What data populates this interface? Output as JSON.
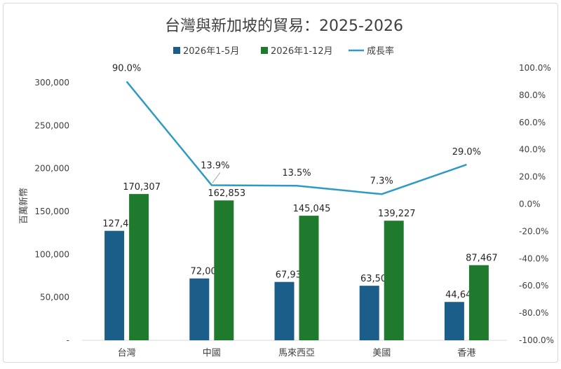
{
  "chart_data": {
    "type": "bar",
    "title": "台灣與新加坡的貿易：2025-2026",
    "ylabel": "百萬新幣",
    "categories": [
      "台灣",
      "中國",
      "馬來西亞",
      "美國",
      "香港"
    ],
    "series": [
      {
        "name": "2026年1-5月",
        "kind": "bar",
        "axis": "left",
        "color": "#1b5e8a",
        "values": [
          127443,
          72001,
          67935,
          63501,
          44645
        ],
        "labels": [
          "127,443",
          "72,001",
          "67,935",
          "63,501",
          "44,645"
        ]
      },
      {
        "name": "2026年1-12月",
        "kind": "bar",
        "axis": "left",
        "color": "#1f7a2e",
        "values": [
          170307,
          162853,
          145045,
          139227,
          87467
        ],
        "labels": [
          "170,307",
          "162,853",
          "145,045",
          "139,227",
          "87,467"
        ]
      },
      {
        "name": "成長率",
        "kind": "line",
        "axis": "right",
        "color": "#2e9ac4",
        "values": [
          90.0,
          13.9,
          13.5,
          7.3,
          29.0
        ],
        "labels": [
          "90.0%",
          "13.9%",
          "13.5%",
          "7.3%",
          "29.0%"
        ]
      }
    ],
    "ylim": [
      0,
      300000
    ],
    "y2lim": [
      -100,
      100
    ],
    "y_ticks": [
      "-",
      "50,000",
      "100,000",
      "150,000",
      "200,000",
      "250,000",
      "300,000"
    ],
    "y2_ticks": [
      "-100.0%",
      "-80.0%",
      "-60.0%",
      "-40.0%",
      "-20.0%",
      "0.0%",
      "20.0%",
      "40.0%",
      "60.0%",
      "80.0%",
      "100.0%"
    ],
    "grid": false,
    "legend_position": "top"
  }
}
